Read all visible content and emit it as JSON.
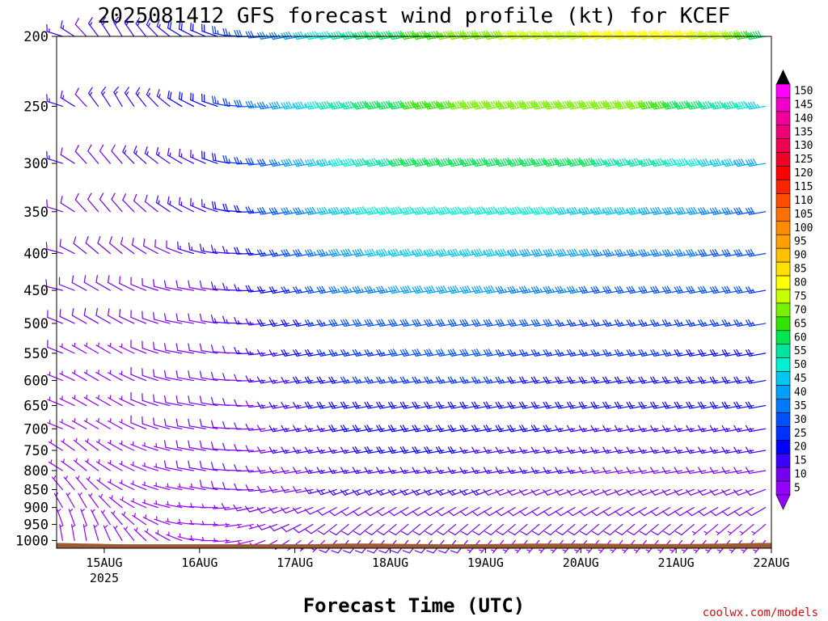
{
  "chart_data": {
    "type": "wind-barb-profile",
    "title": "2025081412 GFS forecast wind profile (kt) for KCEF",
    "xlabel": "Forecast Time (UTC)",
    "credit": "coolwx.com/models",
    "x_ticks": [
      {
        "label": "15AUG",
        "sub": "2025",
        "hours": 12
      },
      {
        "label": "16AUG",
        "sub": "",
        "hours": 36
      },
      {
        "label": "17AUG",
        "sub": "",
        "hours": 60
      },
      {
        "label": "18AUG",
        "sub": "",
        "hours": 84
      },
      {
        "label": "19AUG",
        "sub": "",
        "hours": 108
      },
      {
        "label": "20AUG",
        "sub": "",
        "hours": 132
      },
      {
        "label": "21AUG",
        "sub": "",
        "hours": 156
      },
      {
        "label": "22AUG",
        "sub": "",
        "hours": 180
      }
    ],
    "x_range_hours": [
      0,
      180
    ],
    "forecast_step_hours": 3,
    "y_label_levels_hPa": [
      200,
      250,
      300,
      350,
      400,
      450,
      500,
      550,
      600,
      650,
      700,
      750,
      800,
      850,
      900,
      950,
      1000
    ],
    "y_range_hPa": [
      200,
      1025
    ],
    "y_scale": "log",
    "colorbar": {
      "labels": [
        150,
        145,
        140,
        135,
        130,
        125,
        120,
        115,
        110,
        105,
        100,
        95,
        90,
        85,
        80,
        75,
        70,
        65,
        60,
        55,
        50,
        45,
        40,
        35,
        30,
        25,
        20,
        15,
        10,
        5
      ],
      "colors": [
        "#ff00ff",
        "#f000c8",
        "#f0009a",
        "#f00078",
        "#f00050",
        "#f00028",
        "#ff0000",
        "#ff2400",
        "#ff4c00",
        "#ff7000",
        "#ff8c00",
        "#ffa000",
        "#ffc000",
        "#ffe000",
        "#ffff00",
        "#c8ff00",
        "#78f000",
        "#30e600",
        "#00e650",
        "#00e6a0",
        "#00f0d2",
        "#00c8f0",
        "#00a0ff",
        "#0078ff",
        "#0050ff",
        "#0032ff",
        "#0000ff",
        "#3c00ff",
        "#7800f0",
        "#9600ff"
      ],
      "extend": "both"
    },
    "wind_speed_kt": {
      "200": [
        16,
        12,
        14,
        16,
        18,
        20,
        26,
        34,
        44,
        52,
        58,
        62,
        66,
        70,
        72,
        74,
        76,
        78,
        80,
        82,
        80,
        74,
        66,
        60
      ],
      "250": [
        16,
        12,
        14,
        16,
        18,
        22,
        28,
        36,
        46,
        54,
        60,
        62,
        66,
        68,
        70,
        70,
        72,
        72,
        70,
        66,
        60,
        56,
        50,
        44
      ],
      "300": [
        14,
        10,
        12,
        14,
        16,
        18,
        24,
        32,
        40,
        48,
        54,
        58,
        60,
        62,
        62,
        62,
        60,
        58,
        56,
        54,
        50,
        46,
        40,
        36
      ],
      "350": [
        12,
        10,
        10,
        12,
        14,
        16,
        20,
        28,
        36,
        44,
        48,
        52,
        52,
        52,
        52,
        50,
        48,
        46,
        44,
        42,
        40,
        36,
        32,
        30
      ],
      "400": [
        10,
        10,
        10,
        12,
        12,
        14,
        18,
        24,
        30,
        38,
        42,
        44,
        44,
        44,
        44,
        42,
        40,
        38,
        36,
        36,
        34,
        32,
        30,
        28
      ],
      "450": [
        10,
        8,
        8,
        10,
        10,
        12,
        16,
        20,
        26,
        32,
        36,
        38,
        38,
        38,
        38,
        36,
        34,
        32,
        30,
        30,
        30,
        30,
        28,
        26
      ],
      "500": [
        8,
        8,
        8,
        8,
        10,
        12,
        14,
        18,
        22,
        28,
        30,
        32,
        32,
        32,
        32,
        30,
        28,
        26,
        26,
        26,
        26,
        26,
        24,
        24
      ],
      "550": [
        8,
        6,
        6,
        8,
        10,
        10,
        12,
        16,
        20,
        24,
        26,
        28,
        28,
        28,
        28,
        26,
        24,
        24,
        24,
        24,
        22,
        22,
        22,
        22
      ],
      "600": [
        6,
        6,
        6,
        8,
        8,
        10,
        12,
        14,
        18,
        22,
        24,
        24,
        24,
        24,
        24,
        22,
        22,
        22,
        20,
        20,
        20,
        20,
        20,
        20
      ],
      "650": [
        6,
        6,
        6,
        8,
        8,
        10,
        10,
        14,
        16,
        20,
        22,
        22,
        22,
        22,
        20,
        20,
        20,
        18,
        18,
        18,
        18,
        18,
        18,
        18
      ],
      "700": [
        6,
        6,
        6,
        8,
        8,
        8,
        10,
        12,
        14,
        18,
        20,
        20,
        20,
        20,
        18,
        18,
        18,
        16,
        16,
        16,
        16,
        16,
        16,
        16
      ],
      "750": [
        6,
        6,
        6,
        6,
        8,
        8,
        10,
        12,
        14,
        16,
        18,
        18,
        18,
        18,
        16,
        16,
        16,
        14,
        14,
        14,
        14,
        14,
        14,
        14
      ],
      "800": [
        6,
        6,
        6,
        6,
        8,
        8,
        8,
        10,
        12,
        14,
        16,
        16,
        16,
        16,
        14,
        14,
        14,
        12,
        12,
        12,
        12,
        12,
        12,
        12
      ],
      "850": [
        6,
        4,
        6,
        6,
        6,
        8,
        8,
        10,
        12,
        14,
        14,
        14,
        14,
        14,
        12,
        12,
        12,
        12,
        10,
        10,
        10,
        10,
        10,
        10
      ],
      "900": [
        4,
        4,
        4,
        6,
        6,
        6,
        8,
        8,
        10,
        12,
        12,
        12,
        12,
        12,
        10,
        10,
        10,
        10,
        10,
        10,
        8,
        8,
        8,
        8
      ],
      "950": [
        4,
        4,
        4,
        4,
        6,
        6,
        6,
        8,
        8,
        10,
        10,
        10,
        10,
        10,
        8,
        8,
        8,
        8,
        8,
        8,
        8,
        6,
        6,
        6
      ],
      "1000": [
        4,
        4,
        4,
        4,
        4,
        4,
        6,
        6,
        6,
        8,
        8,
        8,
        8,
        8,
        6,
        6,
        6,
        6,
        6,
        6,
        6,
        6,
        6,
        6
      ]
    },
    "wind_dir_deg": {
      "200": [
        280,
        320,
        330,
        320,
        300,
        290,
        270,
        260,
        260,
        260,
        260,
        260,
        260,
        260,
        260,
        260,
        260,
        260,
        260,
        260,
        260,
        260,
        260,
        260
      ],
      "250": [
        280,
        320,
        330,
        320,
        300,
        290,
        270,
        260,
        260,
        260,
        260,
        260,
        260,
        260,
        260,
        260,
        260,
        260,
        260,
        260,
        260,
        260,
        260,
        260
      ],
      "300": [
        280,
        320,
        320,
        310,
        300,
        290,
        270,
        260,
        260,
        260,
        260,
        260,
        260,
        260,
        260,
        260,
        260,
        260,
        260,
        260,
        260,
        260,
        260,
        260
      ],
      "350": [
        280,
        320,
        320,
        310,
        300,
        290,
        270,
        260,
        260,
        260,
        260,
        260,
        260,
        260,
        260,
        260,
        260,
        260,
        260,
        260,
        260,
        260,
        260,
        260
      ],
      "400": [
        280,
        310,
        310,
        300,
        290,
        280,
        270,
        260,
        260,
        260,
        260,
        260,
        260,
        260,
        260,
        260,
        260,
        260,
        260,
        260,
        260,
        260,
        260,
        260
      ],
      "450": [
        280,
        300,
        300,
        290,
        280,
        280,
        270,
        260,
        260,
        260,
        260,
        260,
        260,
        260,
        260,
        260,
        260,
        260,
        260,
        260,
        260,
        260,
        260,
        260
      ],
      "500": [
        290,
        300,
        300,
        290,
        280,
        280,
        270,
        260,
        260,
        260,
        260,
        260,
        260,
        260,
        260,
        260,
        260,
        260,
        260,
        260,
        260,
        260,
        260,
        260
      ],
      "550": [
        290,
        300,
        300,
        290,
        280,
        280,
        270,
        260,
        260,
        260,
        260,
        260,
        260,
        260,
        260,
        260,
        260,
        260,
        260,
        260,
        260,
        260,
        260,
        260
      ],
      "600": [
        290,
        300,
        300,
        290,
        280,
        280,
        270,
        260,
        260,
        260,
        260,
        260,
        260,
        260,
        260,
        260,
        260,
        260,
        260,
        260,
        260,
        260,
        260,
        260
      ],
      "650": [
        290,
        300,
        300,
        290,
        280,
        280,
        270,
        260,
        260,
        260,
        260,
        260,
        260,
        260,
        260,
        260,
        260,
        260,
        260,
        260,
        260,
        260,
        260,
        260
      ],
      "700": [
        290,
        300,
        300,
        290,
        280,
        280,
        270,
        260,
        260,
        260,
        260,
        260,
        260,
        260,
        260,
        260,
        260,
        260,
        260,
        260,
        260,
        260,
        260,
        260
      ],
      "750": [
        300,
        310,
        300,
        290,
        280,
        280,
        270,
        260,
        260,
        260,
        260,
        260,
        260,
        260,
        260,
        260,
        260,
        260,
        260,
        260,
        260,
        260,
        260,
        260
      ],
      "800": [
        300,
        310,
        300,
        290,
        280,
        280,
        270,
        260,
        260,
        260,
        260,
        260,
        260,
        260,
        260,
        260,
        260,
        260,
        260,
        260,
        260,
        260,
        260,
        260
      ],
      "850": [
        320,
        320,
        300,
        290,
        280,
        280,
        270,
        260,
        260,
        250,
        250,
        250,
        250,
        250,
        250,
        250,
        250,
        250,
        250,
        250,
        250,
        250,
        250,
        250
      ],
      "900": [
        330,
        330,
        310,
        290,
        280,
        270,
        260,
        250,
        250,
        240,
        240,
        240,
        240,
        240,
        240,
        240,
        240,
        240,
        240,
        240,
        240,
        240,
        240,
        240
      ],
      "950": [
        340,
        340,
        320,
        300,
        280,
        270,
        260,
        250,
        240,
        230,
        230,
        230,
        230,
        230,
        230,
        230,
        230,
        230,
        230,
        230,
        230,
        230,
        230,
        230
      ],
      "1000": [
        350,
        350,
        330,
        310,
        290,
        270,
        260,
        240,
        230,
        220,
        220,
        220,
        220,
        220,
        220,
        220,
        220,
        220,
        220,
        220,
        220,
        220,
        220,
        220
      ]
    },
    "wind_sample_hours": [
      0,
      8,
      16,
      24,
      32,
      40,
      48,
      56,
      64,
      72,
      80,
      88,
      96,
      104,
      112,
      120,
      128,
      136,
      144,
      152,
      160,
      168,
      176,
      180
    ],
    "surface_pressure_hPa": [
      1008,
      1010,
      1012,
      1012,
      1012,
      1012,
      1012,
      1012,
      1012,
      1010,
      1010,
      1011,
      1012,
      1012,
      1011,
      1010,
      1010,
      1010,
      1011,
      1011,
      1011,
      1010,
      1008,
      1008
    ],
    "surface_fill_color": "#9b5a33"
  }
}
